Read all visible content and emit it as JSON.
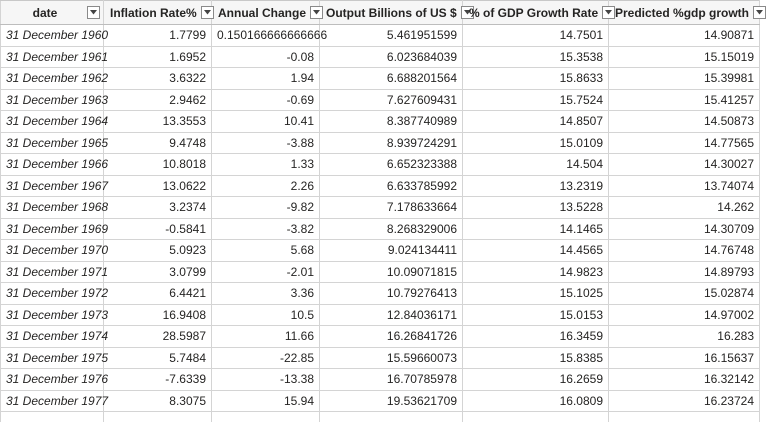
{
  "table": {
    "columns": [
      {
        "key": "date",
        "label": "date"
      },
      {
        "key": "inflation",
        "label": "Inflation Rate%"
      },
      {
        "key": "annual_change",
        "label": "Annual Change"
      },
      {
        "key": "output",
        "label": "Output Billions of US $"
      },
      {
        "key": "gdp_growth",
        "label": "% of GDP Growth Rate"
      },
      {
        "key": "predicted",
        "label": "Predicted %gdp growth"
      }
    ],
    "rows": [
      [
        "31 December 1960",
        "1.7799",
        "0.150166666666666",
        "5.461951599",
        "14.7501",
        "14.90871"
      ],
      [
        "31 December 1961",
        "1.6952",
        "-0.08",
        "6.023684039",
        "15.3538",
        "15.15019"
      ],
      [
        "31 December 1962",
        "3.6322",
        "1.94",
        "6.688201564",
        "15.8633",
        "15.39981"
      ],
      [
        "31 December 1963",
        "2.9462",
        "-0.69",
        "7.627609431",
        "15.7524",
        "15.41257"
      ],
      [
        "31 December 1964",
        "13.3553",
        "10.41",
        "8.387740989",
        "14.8507",
        "14.50873"
      ],
      [
        "31 December 1965",
        "9.4748",
        "-3.88",
        "8.939724291",
        "15.0109",
        "14.77565"
      ],
      [
        "31 December 1966",
        "10.8018",
        "1.33",
        "6.652323388",
        "14.504",
        "14.30027"
      ],
      [
        "31 December 1967",
        "13.0622",
        "2.26",
        "6.633785992",
        "13.2319",
        "13.74074"
      ],
      [
        "31 December 1968",
        "3.2374",
        "-9.82",
        "7.178633664",
        "13.5228",
        "14.262"
      ],
      [
        "31 December 1969",
        "-0.5841",
        "-3.82",
        "8.268329006",
        "14.1465",
        "14.30709"
      ],
      [
        "31 December 1970",
        "5.0923",
        "5.68",
        "9.024134411",
        "14.4565",
        "14.76748"
      ],
      [
        "31 December 1971",
        "3.0799",
        "-2.01",
        "10.09071815",
        "14.9823",
        "14.89793"
      ],
      [
        "31 December 1972",
        "6.4421",
        "3.36",
        "10.79276413",
        "15.1025",
        "15.02874"
      ],
      [
        "31 December 1973",
        "16.9408",
        "10.5",
        "12.84036171",
        "15.0153",
        "14.97002"
      ],
      [
        "31 December 1974",
        "28.5987",
        "11.66",
        "16.26841726",
        "16.3459",
        "16.283"
      ],
      [
        "31 December 1975",
        "5.7484",
        "-22.85",
        "15.59660073",
        "15.8385",
        "16.15637"
      ],
      [
        "31 December 1976",
        "-7.6339",
        "-13.38",
        "16.70785978",
        "16.2659",
        "16.32142"
      ],
      [
        "31 December 1977",
        "8.3075",
        "15.94",
        "19.53621709",
        "16.0809",
        "16.23724"
      ]
    ]
  },
  "icons": {
    "filter": "filter-dropdown-icon"
  }
}
